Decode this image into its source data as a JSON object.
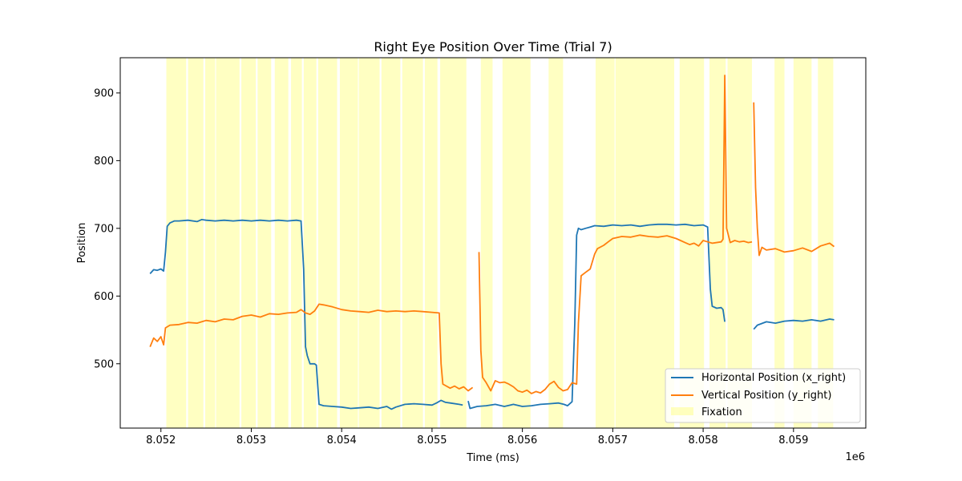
{
  "chart_data": {
    "type": "line",
    "title": "Right Eye Position Over Time (Trial 7)",
    "xlabel": "Time (ms)",
    "ylabel": "Position",
    "x_offset_label": "1e6",
    "xlim": [
      8051550,
      8059800
    ],
    "ylim": [
      405,
      952
    ],
    "x_ticks": [
      8052000,
      8053000,
      8054000,
      8055000,
      8056000,
      8057000,
      8058000,
      8059000
    ],
    "x_tick_labels": [
      "8.052",
      "8.053",
      "8.054",
      "8.055",
      "8.056",
      "8.057",
      "8.058",
      "8.059"
    ],
    "y_ticks": [
      500,
      600,
      700,
      800,
      900
    ],
    "y_tick_labels": [
      "500",
      "600",
      "700",
      "800",
      "900"
    ],
    "grid": false,
    "legend_position": "lower-right",
    "colors": {
      "x_right": "#1f77b4",
      "y_right": "#ff7f0e",
      "fixation": "#ffff66"
    },
    "series": [
      {
        "name": "Horizontal Position (x_right)",
        "key": "x_right",
        "segments": [
          [
            [
              8051880,
              633
            ],
            [
              8051920,
              639
            ],
            [
              8051960,
              638
            ],
            [
              8052000,
              640
            ],
            [
              8052030,
              637
            ],
            [
              8052050,
              665
            ],
            [
              8052070,
              703
            ],
            [
              8052100,
              708
            ],
            [
              8052150,
              711
            ],
            [
              8052200,
              711
            ],
            [
              8052300,
              712
            ],
            [
              8052400,
              710
            ],
            [
              8052450,
              713
            ],
            [
              8052500,
              712
            ],
            [
              8052600,
              711
            ],
            [
              8052700,
              712
            ],
            [
              8052800,
              711
            ],
            [
              8052900,
              712
            ],
            [
              8053000,
              711
            ],
            [
              8053100,
              712
            ],
            [
              8053200,
              711
            ],
            [
              8053300,
              712
            ],
            [
              8053400,
              711
            ],
            [
              8053500,
              712
            ],
            [
              8053550,
              711
            ],
            [
              8053580,
              640
            ],
            [
              8053600,
              525
            ],
            [
              8053620,
              512
            ],
            [
              8053650,
              500
            ],
            [
              8053700,
              500
            ],
            [
              8053720,
              498
            ],
            [
              8053750,
              440
            ],
            [
              8053800,
              438
            ],
            [
              8053900,
              437
            ],
            [
              8054000,
              436
            ],
            [
              8054100,
              434
            ],
            [
              8054200,
              435
            ],
            [
              8054300,
              436
            ],
            [
              8054400,
              434
            ],
            [
              8054500,
              437
            ],
            [
              8054550,
              433
            ],
            [
              8054600,
              436
            ],
            [
              8054700,
              440
            ],
            [
              8054800,
              441
            ],
            [
              8054900,
              440
            ],
            [
              8055000,
              439
            ],
            [
              8055050,
              442
            ],
            [
              8055100,
              446
            ],
            [
              8055150,
              443
            ],
            [
              8055200,
              442
            ],
            [
              8055300,
              440
            ],
            [
              8055340,
              439
            ]
          ],
          [
            [
              8055400,
              445
            ],
            [
              8055420,
              434
            ],
            [
              8055500,
              437
            ],
            [
              8055600,
              438
            ],
            [
              8055700,
              440
            ],
            [
              8055800,
              437
            ],
            [
              8055900,
              440
            ],
            [
              8056000,
              437
            ],
            [
              8056100,
              438
            ],
            [
              8056200,
              440
            ],
            [
              8056300,
              441
            ],
            [
              8056400,
              442
            ],
            [
              8056460,
              440
            ],
            [
              8056500,
              438
            ],
            [
              8056550,
              444
            ],
            [
              8056580,
              560
            ],
            [
              8056600,
              690
            ],
            [
              8056620,
              700
            ],
            [
              8056650,
              698
            ],
            [
              8056700,
              700
            ],
            [
              8056750,
              702
            ],
            [
              8056800,
              704
            ],
            [
              8056900,
              703
            ],
            [
              8057000,
              705
            ],
            [
              8057100,
              704
            ],
            [
              8057200,
              705
            ],
            [
              8057300,
              703
            ],
            [
              8057400,
              705
            ],
            [
              8057500,
              706
            ],
            [
              8057600,
              706
            ],
            [
              8057700,
              705
            ],
            [
              8057800,
              706
            ],
            [
              8057900,
              704
            ],
            [
              8058000,
              705
            ],
            [
              8058050,
              702
            ],
            [
              8058080,
              610
            ],
            [
              8058100,
              585
            ],
            [
              8058150,
              582
            ],
            [
              8058200,
              583
            ],
            [
              8058220,
              580
            ],
            [
              8058240,
              562
            ]
          ],
          [
            [
              8058560,
              551
            ],
            [
              8058600,
              557
            ],
            [
              8058700,
              562
            ],
            [
              8058800,
              560
            ],
            [
              8058900,
              563
            ],
            [
              8059000,
              564
            ],
            [
              8059100,
              563
            ],
            [
              8059200,
              565
            ],
            [
              8059300,
              563
            ],
            [
              8059400,
              566
            ],
            [
              8059450,
              565
            ]
          ]
        ]
      },
      {
        "name": "Vertical Position (y_right)",
        "key": "y_right",
        "segments": [
          [
            [
              8051880,
              525
            ],
            [
              8051920,
              538
            ],
            [
              8051960,
              533
            ],
            [
              8052000,
              540
            ],
            [
              8052030,
              528
            ],
            [
              8052050,
              553
            ],
            [
              8052100,
              557
            ],
            [
              8052200,
              558
            ],
            [
              8052300,
              561
            ],
            [
              8052400,
              560
            ],
            [
              8052500,
              564
            ],
            [
              8052600,
              562
            ],
            [
              8052700,
              566
            ],
            [
              8052800,
              565
            ],
            [
              8052900,
              570
            ],
            [
              8053000,
              572
            ],
            [
              8053100,
              569
            ],
            [
              8053200,
              574
            ],
            [
              8053300,
              573
            ],
            [
              8053400,
              575
            ],
            [
              8053500,
              576
            ],
            [
              8053550,
              580
            ],
            [
              8053600,
              575
            ],
            [
              8053650,
              573
            ],
            [
              8053700,
              578
            ],
            [
              8053750,
              588
            ],
            [
              8053800,
              587
            ],
            [
              8053900,
              584
            ],
            [
              8054000,
              580
            ],
            [
              8054100,
              578
            ],
            [
              8054200,
              577
            ],
            [
              8054300,
              576
            ],
            [
              8054400,
              579
            ],
            [
              8054500,
              577
            ],
            [
              8054600,
              578
            ],
            [
              8054700,
              577
            ],
            [
              8054800,
              578
            ],
            [
              8054900,
              577
            ],
            [
              8055000,
              576
            ],
            [
              8055080,
              575
            ],
            [
              8055100,
              500
            ],
            [
              8055120,
              470
            ],
            [
              8055200,
              464
            ],
            [
              8055250,
              467
            ],
            [
              8055300,
              463
            ],
            [
              8055350,
              466
            ],
            [
              8055400,
              460
            ],
            [
              8055450,
              465
            ]
          ],
          [
            [
              8055520,
              665
            ],
            [
              8055540,
              520
            ],
            [
              8055560,
              480
            ],
            [
              8055600,
              472
            ],
            [
              8055650,
              460
            ],
            [
              8055700,
              475
            ],
            [
              8055750,
              472
            ],
            [
              8055800,
              473
            ],
            [
              8055850,
              470
            ],
            [
              8055900,
              466
            ],
            [
              8055950,
              460
            ],
            [
              8056000,
              458
            ],
            [
              8056050,
              461
            ],
            [
              8056100,
              456
            ],
            [
              8056150,
              459
            ],
            [
              8056200,
              457
            ],
            [
              8056250,
              462
            ],
            [
              8056300,
              470
            ],
            [
              8056350,
              474
            ],
            [
              8056400,
              465
            ],
            [
              8056450,
              460
            ],
            [
              8056500,
              462
            ],
            [
              8056550,
              472
            ],
            [
              8056600,
              470
            ],
            [
              8056620,
              560
            ],
            [
              8056650,
              630
            ],
            [
              8056700,
              635
            ],
            [
              8056750,
              640
            ],
            [
              8056800,
              662
            ],
            [
              8056830,
              670
            ],
            [
              8056900,
              675
            ],
            [
              8056950,
              680
            ],
            [
              8057000,
              685
            ],
            [
              8057100,
              688
            ],
            [
              8057200,
              687
            ],
            [
              8057300,
              690
            ],
            [
              8057400,
              688
            ],
            [
              8057500,
              687
            ],
            [
              8057600,
              689
            ],
            [
              8057700,
              685
            ],
            [
              8057750,
              682
            ],
            [
              8057800,
              679
            ],
            [
              8057850,
              676
            ],
            [
              8057900,
              678
            ],
            [
              8057950,
              674
            ],
            [
              8058000,
              682
            ],
            [
              8058050,
              680
            ],
            [
              8058100,
              678
            ],
            [
              8058200,
              680
            ],
            [
              8058220,
              684
            ],
            [
              8058240,
              926
            ],
            [
              8058260,
              700
            ],
            [
              8058300,
              679
            ],
            [
              8058350,
              682
            ],
            [
              8058400,
              680
            ],
            [
              8058450,
              681
            ],
            [
              8058500,
              679
            ],
            [
              8058540,
              680
            ]
          ],
          [
            [
              8058560,
              886
            ],
            [
              8058580,
              760
            ],
            [
              8058600,
              700
            ],
            [
              8058620,
              660
            ],
            [
              8058650,
              672
            ],
            [
              8058700,
              668
            ],
            [
              8058800,
              670
            ],
            [
              8058900,
              665
            ],
            [
              8059000,
              667
            ],
            [
              8059100,
              671
            ],
            [
              8059200,
              666
            ],
            [
              8059300,
              674
            ],
            [
              8059400,
              678
            ],
            [
              8059450,
              673
            ]
          ]
        ]
      }
    ],
    "fixations": [
      [
        8052060,
        8052280
      ],
      [
        8052300,
        8052470
      ],
      [
        8052490,
        8052600
      ],
      [
        8052610,
        8052870
      ],
      [
        8052890,
        8053050
      ],
      [
        8053070,
        8053220
      ],
      [
        8053260,
        8053410
      ],
      [
        8053440,
        8053560
      ],
      [
        8053580,
        8053720
      ],
      [
        8053740,
        8053950
      ],
      [
        8053980,
        8054180
      ],
      [
        8054190,
        8054420
      ],
      [
        8054440,
        8054650
      ],
      [
        8054670,
        8054900
      ],
      [
        8054920,
        8055060
      ],
      [
        8055090,
        8055380
      ],
      [
        8055540,
        8055670
      ],
      [
        8055780,
        8056090
      ],
      [
        8056290,
        8056450
      ],
      [
        8056810,
        8057020
      ],
      [
        8057030,
        8057680
      ],
      [
        8057740,
        8058010
      ],
      [
        8058070,
        8058250
      ],
      [
        8058270,
        8058540
      ],
      [
        8058790,
        8058900
      ],
      [
        8059000,
        8059200
      ],
      [
        8059270,
        8059440
      ]
    ],
    "legend": {
      "x_label": "Horizontal Position (x_right)",
      "y_label": "Vertical Position (y_right)",
      "fix_label": "Fixation"
    }
  }
}
